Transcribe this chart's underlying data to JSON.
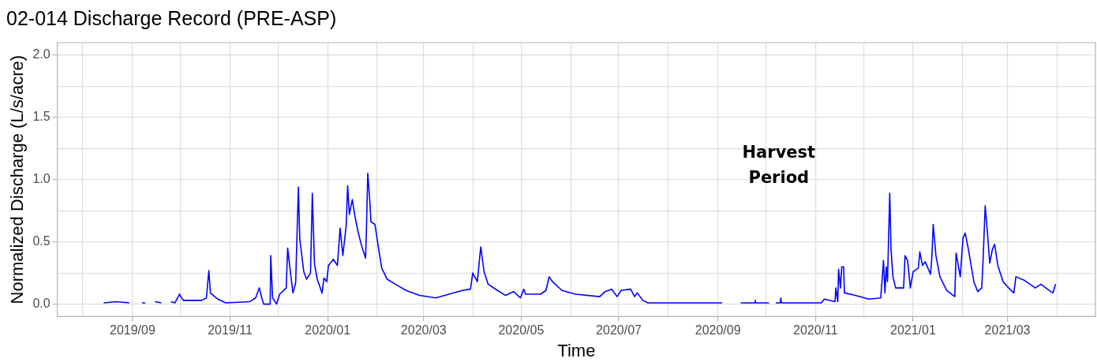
{
  "chart_data": {
    "type": "line",
    "title": "02-014 Discharge Record (PRE-ASP)",
    "xlabel": "Time",
    "ylabel": "Normalized Discharge (L/s/acre)",
    "annotations": [
      "Harvest Period"
    ],
    "legend": false,
    "grid": true,
    "marker": "none",
    "line_style": "solid",
    "xlim": [
      "2019-07-16",
      "2021-04-25"
    ],
    "xticks": [
      {
        "value": "2019-08",
        "label": null
      },
      {
        "value": "2019-09",
        "label": "2019/09"
      },
      {
        "value": "2019-10",
        "label": null
      },
      {
        "value": "2019-11",
        "label": "2019/11"
      },
      {
        "value": "2019-12",
        "label": null
      },
      {
        "value": "2020-01",
        "label": "2020/01"
      },
      {
        "value": "2020-02",
        "label": null
      },
      {
        "value": "2020-03",
        "label": "2020/03"
      },
      {
        "value": "2020-04",
        "label": null
      },
      {
        "value": "2020-05",
        "label": "2020/05"
      },
      {
        "value": "2020-06",
        "label": null
      },
      {
        "value": "2020-07",
        "label": "2020/07"
      },
      {
        "value": "2020-08",
        "label": null
      },
      {
        "value": "2020-09",
        "label": "2020/09"
      },
      {
        "value": "2020-10",
        "label": null
      },
      {
        "value": "2020-11",
        "label": "2020/11"
      },
      {
        "value": "2020-12",
        "label": null
      },
      {
        "value": "2021-01",
        "label": "2021/01"
      },
      {
        "value": "2021-02",
        "label": null
      },
      {
        "value": "2021-03",
        "label": "2021/03"
      },
      {
        "value": "2021-04",
        "label": null
      }
    ],
    "ylim": [
      -0.1,
      2.1
    ],
    "yticks": [
      {
        "value": 0,
        "label": "0.0"
      },
      {
        "value": 0.25,
        "label": null
      },
      {
        "value": 0.5,
        "label": "0.5"
      },
      {
        "value": 0.75,
        "label": null
      },
      {
        "value": 1,
        "label": "1.0"
      },
      {
        "value": 1.25,
        "label": null
      },
      {
        "value": 1.5,
        "label": "1.5"
      },
      {
        "value": 1.75,
        "label": null
      },
      {
        "value": 2,
        "label": "2.0"
      }
    ],
    "x": [
      "2019-08-14",
      "2019-08-22",
      "2019-08-30",
      "2019-09-04",
      "2019-09-07",
      "2019-09-09",
      "2019-09-11",
      "2019-09-15",
      "2019-09-19",
      "2019-09-23",
      "2019-09-25",
      "2019-09-27T12:00",
      "2019-09-30T10:00",
      "2019-10-01T14:00",
      "2019-10-03",
      "2019-10-14T05:00",
      "2019-10-17T05:00",
      "2019-10-18T17:00",
      "2019-10-19T17:00",
      "2019-10-24T07:00",
      "2019-10-29T07:00",
      "2019-11-13T10:00",
      "2019-11-17",
      "2019-11-19T07:00",
      "2019-11-21",
      "2019-11-22",
      "2019-11-26T02:00",
      "2019-11-26T10:00",
      "2019-11-27T14:00",
      "2019-11-30T02:00",
      "2019-12-02",
      "2019-12-06T02:00",
      "2019-12-07",
      "2019-12-08T17:00",
      "2019-12-10T07:00",
      "2019-12-12",
      "2019-12-13T17:00",
      "2019-12-14T14:00",
      "2019-12-17T02:00",
      "2019-12-18T19:00",
      "2019-12-21T07:00",
      "2019-12-22T10:00",
      "2019-12-23T19:00",
      "2019-12-25T12:00",
      "2019-12-28T12:00",
      "2019-12-29T17:00",
      "2019-12-31T10:00",
      "2020-01-01T12:00",
      "2020-01-04T14:00",
      "2020-01-07T02:00",
      "2020-01-08T19:00",
      "2020-01-10T12:00",
      "2020-01-12T14:00",
      "2020-01-13T12:00",
      "2020-01-14T14:00",
      "2020-01-16T10:00",
      "2020-01-18",
      "2020-01-20",
      "2020-01-22T05:00",
      "2020-01-24T17:00",
      "2020-01-25T05:00",
      "2020-01-26T02:00",
      "2020-01-27T07:00",
      "2020-01-28T02:00",
      "2020-01-30T14:00",
      "2020-02-01T19:00",
      "2020-02-03T19:00",
      "2020-02-07T05:00",
      "2020-02-12T07:00",
      "2020-02-19",
      "2020-02-27T10:00",
      "2020-03-08T12:00",
      "2020-03-16T22:00",
      "2020-03-25T07:00",
      "2020-03-30T07:00",
      "2020-03-31T17:00",
      "2020-04-03T14:00",
      "2020-04-05T17:00",
      "2020-04-07T19:00",
      "2020-04-10T07:00",
      "2020-04-16T05:00",
      "2020-04-21T05:00",
      "2020-04-26T07:00",
      "2020-04-30T12:00",
      "2020-05-02T14:00",
      "2020-05-03T19:00",
      "2020-05-13T02:00",
      "2020-05-16T12:00",
      "2020-05-18T12:00",
      "2020-05-20T14:00",
      "2020-05-26T12:00",
      "2020-06-03T22:00",
      "2020-06-19T02:00",
      "2020-06-22T10:00",
      "2020-06-26T14:00",
      "2020-06-30",
      "2020-07-02T12:00",
      "2020-07-08T10:00",
      "2020-07-10T22:00",
      "2020-07-12T14:00",
      "2020-07-16",
      "2020-07-19T07:00",
      "2020-08-08T12:00",
      "2020-09-03T14:00",
      "2020-09-07",
      "2020-09-15T05:00",
      "2020-09-24",
      "2020-09-24T08:00",
      "2020-09-24T16:00",
      "2020-10-02T22:00",
      "2020-10-05",
      "2020-10-07T05:00",
      "2020-10-10",
      "2020-10-10T08:00",
      "2020-10-10T16:00",
      "2020-11-04T17:00",
      "2020-11-06T12:00",
      "2020-11-13T05:00",
      "2020-11-13T17:00",
      "2020-11-14T22:00",
      "2020-11-15T10:00",
      "2020-11-16T14:00",
      "2020-11-17T10:00",
      "2020-11-18T14:00",
      "2020-11-19T02:00",
      "2020-11-25T19:00",
      "2020-12-04T07:00",
      "2020-12-11T19:00",
      "2020-12-13T12:00",
      "2020-12-14T10:00",
      "2020-12-15T05:00",
      "2020-12-16",
      "2020-12-17T10:00",
      "2020-12-18T05:00",
      "2020-12-19T10:00",
      "2020-12-21T02:00",
      "2020-12-26T02:00",
      "2020-12-27",
      "2020-12-28T14:00",
      "2020-12-30T07:00",
      "2021-01-01",
      "2021-01-04T07:00",
      "2021-01-05T05:00",
      "2021-01-06T22:00",
      "2021-01-08T14:00",
      "2021-01-11T22:00",
      "2021-01-12T19:00",
      "2021-01-13T14:00",
      "2021-01-15T07:00",
      "2021-01-17T19:00",
      "2021-01-22",
      "2021-01-27T02:00",
      "2021-01-27T22:00",
      "2021-01-30T12:00",
      "2021-02-01T05:00",
      "2021-02-02T14:00",
      "2021-02-04T14:00",
      "2021-02-08",
      "2021-02-10T10:00",
      "2021-02-12T22:00",
      "2021-02-13T17:00",
      "2021-02-15T02:00",
      "2021-02-16T05:00",
      "2021-02-17T22:00",
      "2021-02-19T14:00",
      "2021-02-21",
      "2021-02-23",
      "2021-02-26T07:00",
      "2021-03-01T17:00",
      "2021-03-05",
      "2021-03-06T07:00",
      "2021-03-11T17:00",
      "2021-03-18T10:00",
      "2021-03-21T22:00",
      "2021-03-26",
      "2021-03-29T10:00",
      "2021-03-31T02:00"
    ],
    "series": [
      {
        "color": "#0000ff",
        "values": [
          0.01,
          0.02,
          0.01,
          null,
          0.01,
          0.01,
          null,
          0.02,
          0.01,
          null,
          0.02,
          0.01,
          0.08,
          0.05,
          0.03,
          0.03,
          0.05,
          0.27,
          0.09,
          0.04,
          0.01,
          0.02,
          0.05,
          0.13,
          0.04,
          0.0,
          0.0,
          0.39,
          0.05,
          0.0,
          0.08,
          0.13,
          0.45,
          0.26,
          0.09,
          0.17,
          0.94,
          0.52,
          0.26,
          0.2,
          0.25,
          0.89,
          0.32,
          0.2,
          0.09,
          0.21,
          0.18,
          0.31,
          0.36,
          0.31,
          0.61,
          0.39,
          0.63,
          0.95,
          0.72,
          0.84,
          0.71,
          0.58,
          0.47,
          0.37,
          0.58,
          1.05,
          0.84,
          0.66,
          0.64,
          0.45,
          0.29,
          0.2,
          0.16,
          0.11,
          0.07,
          0.05,
          0.08,
          0.11,
          0.12,
          0.25,
          0.18,
          0.46,
          0.26,
          0.16,
          0.11,
          0.07,
          0.1,
          0.05,
          0.12,
          0.08,
          0.08,
          0.11,
          0.22,
          0.18,
          0.11,
          0.08,
          0.06,
          0.1,
          0.12,
          0.06,
          0.11,
          0.12,
          0.06,
          0.09,
          0.03,
          0.01,
          0.01,
          0.01,
          null,
          0.01,
          0.01,
          0.03,
          0.01,
          0.01,
          null,
          0.01,
          0.01,
          0.05,
          0.01,
          0.01,
          0.04,
          0.02,
          0.13,
          0.02,
          0.28,
          0.13,
          0.3,
          0.3,
          0.09,
          0.07,
          0.04,
          0.05,
          0.35,
          0.09,
          0.3,
          0.18,
          0.89,
          0.44,
          0.22,
          0.13,
          0.13,
          0.39,
          0.35,
          0.13,
          0.26,
          0.29,
          0.42,
          0.31,
          0.34,
          0.24,
          0.39,
          0.64,
          0.39,
          0.22,
          0.11,
          0.06,
          0.41,
          0.22,
          0.53,
          0.57,
          0.44,
          0.18,
          0.1,
          0.13,
          0.33,
          0.79,
          0.62,
          0.33,
          0.44,
          0.48,
          0.31,
          0.18,
          0.13,
          0.09,
          0.22,
          0.19,
          0.13,
          0.16,
          0.12,
          0.09,
          0.16
        ]
      }
    ]
  }
}
